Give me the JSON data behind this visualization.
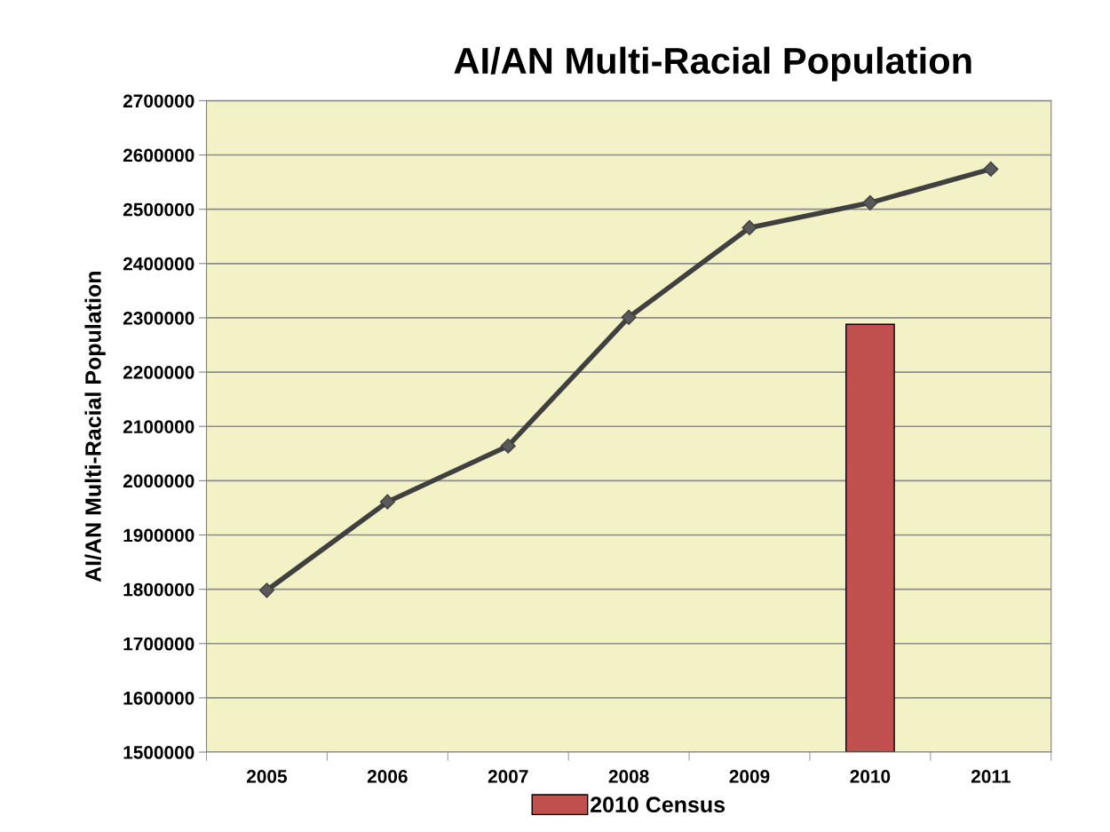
{
  "chart_data": {
    "type": "line",
    "title": "AI/AN Multi-Racial Population",
    "ylabel": "AI/AN Multi-Racial Population",
    "categories": [
      "2005",
      "2006",
      "2007",
      "2008",
      "2009",
      "2010",
      "2011"
    ],
    "series": [
      {
        "color": "#404040",
        "marker": "diamond",
        "line_style": "solid",
        "values": [
          1798000,
          1961000,
          2064000,
          2301000,
          2466000,
          2512000,
          2574000
        ]
      },
      {
        "type": "bar",
        "name": "2010 Census",
        "color": "#c0504d",
        "values": [
          null,
          null,
          null,
          null,
          null,
          2288000,
          null
        ]
      }
    ],
    "ylim": [
      1500000,
      2700000
    ],
    "yticks": [
      1500000,
      1600000,
      1700000,
      1800000,
      1900000,
      2000000,
      2100000,
      2200000,
      2300000,
      2400000,
      2500000,
      2600000,
      2700000
    ],
    "grid": "y",
    "legend": "bottom"
  }
}
